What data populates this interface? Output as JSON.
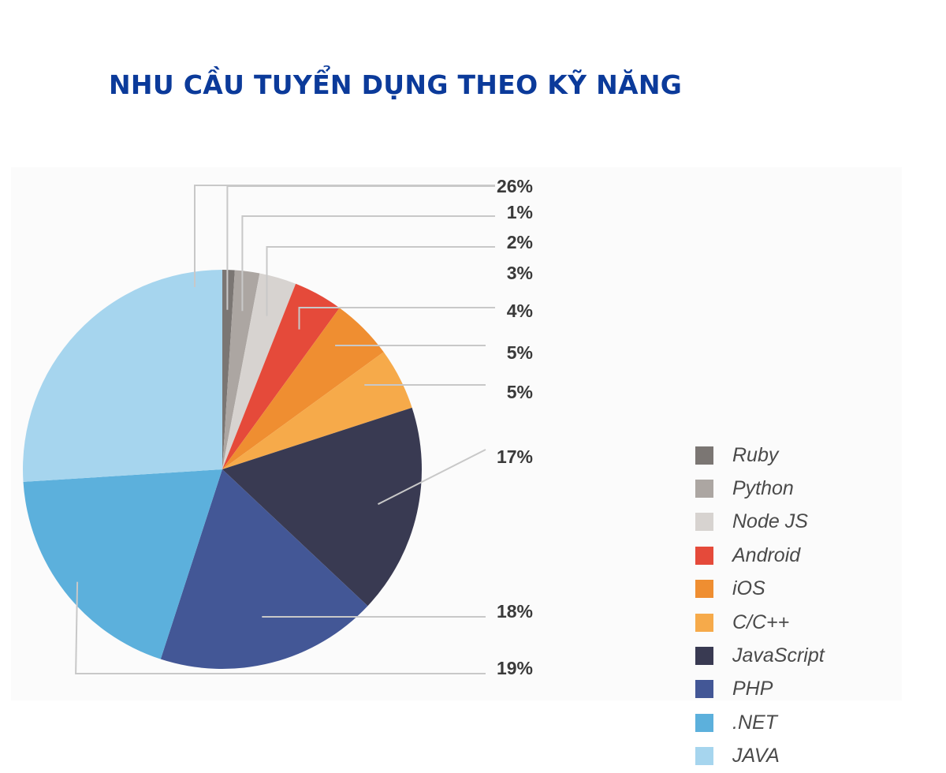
{
  "page": {
    "title": "NHU CẦU TUYỂN DỤNG THEO KỸ NĂNG"
  },
  "chart_data": {
    "type": "pie",
    "title": "NHU CẦU TUYỂN DỤNG THEO KỸ NĂNG",
    "slices": [
      {
        "name": "Ruby",
        "value": 1,
        "label": "1%",
        "color": "#7b7673"
      },
      {
        "name": "Python",
        "value": 2,
        "label": "2%",
        "color": "#aca6a2"
      },
      {
        "name": "Node JS",
        "value": 3,
        "label": "3%",
        "color": "#d7d3d0"
      },
      {
        "name": "Android",
        "value": 4,
        "label": "4%",
        "color": "#e54a3a"
      },
      {
        "name": "iOS",
        "value": 5,
        "label": "5%",
        "color": "#ef8e31"
      },
      {
        "name": "C/C++",
        "value": 5,
        "label": "5%",
        "color": "#f6aa4a"
      },
      {
        "name": "JavaScript",
        "value": 17,
        "label": "17%",
        "color": "#393a52"
      },
      {
        "name": "PHP",
        "value": 18,
        "label": "18%",
        "color": "#435796"
      },
      {
        "name": ".NET",
        "value": 19,
        "label": "19%",
        "color": "#5cb0dc"
      },
      {
        "name": "JAVA",
        "value": 26,
        "label": "26%",
        "color": "#a6d5ee"
      }
    ],
    "legend_position": "right",
    "label_color": "#3a3a3a",
    "leader_color": "#c8c8c8"
  }
}
